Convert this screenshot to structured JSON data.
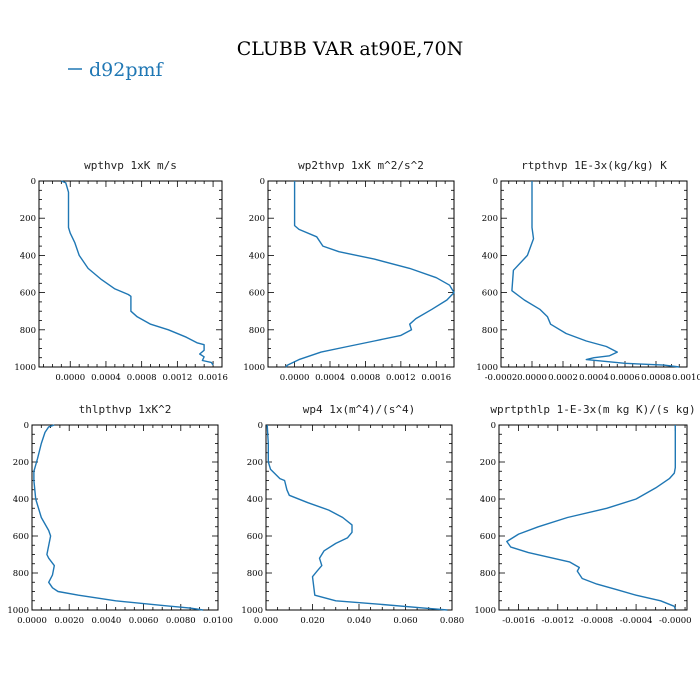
{
  "figure": {
    "title": "CLUBB VAR at90E,70N",
    "legend": {
      "label": "d92pmf",
      "color": "#1f77b4"
    }
  },
  "chart_data": [
    {
      "type": "line",
      "title": "wpthvp  1xK m/s",
      "xlim": [
        -0.00035,
        0.0017
      ],
      "ylim": [
        1000,
        0
      ],
      "xticks": [
        0.0,
        0.0004,
        0.0008,
        0.0012,
        0.0016
      ],
      "xtick_labels": [
        "0.0000",
        "0.0004",
        "0.0008",
        "0.0012",
        "0.0016"
      ],
      "yticks": [
        0,
        200,
        400,
        600,
        800,
        1000
      ],
      "ytick_labels": [
        "0",
        "200",
        "400",
        "600",
        "800",
        "1000"
      ],
      "series": [
        {
          "name": "d92pmf",
          "x": [
            -0.0001,
            -5e-05,
            -2e-05,
            -2e-05,
            0.0,
            5e-05,
            0.0001,
            0.0002,
            0.00035,
            0.0005,
            0.00065,
            0.00068,
            0.00068,
            0.00075,
            0.0009,
            0.0011,
            0.0013,
            0.00142,
            0.0015,
            0.0015,
            0.00145,
            0.0015,
            0.00148,
            0.00158,
            0.0016
          ],
          "y": [
            0,
            10,
            60,
            250,
            280,
            330,
            400,
            470,
            530,
            580,
            610,
            620,
            700,
            730,
            770,
            800,
            840,
            870,
            880,
            910,
            930,
            945,
            965,
            975,
            990
          ]
        }
      ]
    },
    {
      "type": "line",
      "title": "wp2thvp  1xK m^2/s^2",
      "xlim": [
        -0.0003,
        0.0018
      ],
      "ylim": [
        1000,
        0
      ],
      "xticks": [
        0.0,
        0.0004,
        0.0008,
        0.0012,
        0.0016
      ],
      "xtick_labels": [
        "0.0000",
        "0.0004",
        "0.0008",
        "0.0012",
        "0.0016"
      ],
      "yticks": [
        0,
        200,
        400,
        600,
        800,
        1000
      ],
      "ytick_labels": [
        "0",
        "200",
        "400",
        "600",
        "800",
        "1000"
      ],
      "series": [
        {
          "name": "d92pmf",
          "x": [
            0.0,
            0.0,
            5e-05,
            0.00025,
            0.00032,
            0.0005,
            0.0009,
            0.0013,
            0.0016,
            0.00175,
            0.0018,
            0.00172,
            0.00155,
            0.00137,
            0.0013,
            0.00132,
            0.0012,
            0.0009,
            0.0006,
            0.0003,
            5e-05,
            -8e-05,
            -0.0001
          ],
          "y": [
            0,
            240,
            260,
            300,
            350,
            380,
            420,
            470,
            520,
            560,
            600,
            640,
            690,
            740,
            770,
            800,
            830,
            860,
            890,
            920,
            960,
            990,
            1000
          ]
        }
      ]
    },
    {
      "type": "line",
      "title": "rtpthvp  1E-3x(kg/kg) K",
      "xlim": [
        -0.0002,
        0.001
      ],
      "ylim": [
        1000,
        0
      ],
      "xticks": [
        -0.0002,
        0.0,
        0.0002,
        0.0004,
        0.0006,
        0.0008,
        0.001
      ],
      "xtick_labels": [
        "-0.0002",
        "0.0000",
        "0.0002",
        "0.0004",
        "0.0006",
        "0.0008",
        "0.0010"
      ],
      "yticks": [
        0,
        200,
        400,
        600,
        800,
        1000
      ],
      "ytick_labels": [
        "0",
        "200",
        "400",
        "600",
        "800",
        "1000"
      ],
      "series": [
        {
          "name": "d92pmf",
          "x": [
            0.0,
            0.0,
            1e-05,
            -3e-05,
            -0.00012,
            -0.00013,
            -5e-05,
            5e-05,
            0.0001,
            0.00012,
            0.00022,
            0.00035,
            0.00048,
            0.00055,
            0.0005,
            0.0004,
            0.00035,
            0.0006,
            0.00085,
            0.00095
          ],
          "y": [
            0,
            250,
            310,
            400,
            480,
            590,
            640,
            690,
            730,
            770,
            820,
            860,
            890,
            920,
            940,
            950,
            960,
            980,
            990,
            1000
          ]
        }
      ]
    },
    {
      "type": "line",
      "title": "thlpthvp  1xK^2",
      "xlim": [
        0.0,
        0.01
      ],
      "ylim": [
        1000,
        0
      ],
      "xticks": [
        0.0,
        0.002,
        0.004,
        0.006,
        0.008,
        0.01
      ],
      "xtick_labels": [
        "0.0000",
        "0.0020",
        "0.0040",
        "0.0060",
        "0.0080",
        "0.0100"
      ],
      "yticks": [
        0,
        200,
        400,
        600,
        800,
        1000
      ],
      "ytick_labels": [
        "0",
        "200",
        "400",
        "600",
        "800",
        "1000"
      ],
      "series": [
        {
          "name": "d92pmf",
          "x": [
            0.0012,
            0.0009,
            0.0007,
            0.0005,
            0.0003,
            0.0001,
            0.0001,
            0.0002,
            0.0005,
            0.0009,
            0.001,
            0.0008,
            0.0009,
            0.0012,
            0.0011,
            0.0009,
            0.0011,
            0.0014,
            0.0025,
            0.0045,
            0.007,
            0.0085,
            0.0092
          ],
          "y": [
            0,
            10,
            40,
            100,
            180,
            250,
            300,
            400,
            500,
            570,
            600,
            700,
            720,
            760,
            810,
            850,
            880,
            900,
            920,
            950,
            975,
            990,
            1000
          ]
        }
      ]
    },
    {
      "type": "line",
      "title": "wp4  1x(m^4)/(s^4)",
      "xlim": [
        0.0,
        0.08
      ],
      "ylim": [
        1000,
        0
      ],
      "xticks": [
        0.0,
        0.02,
        0.04,
        0.06,
        0.08
      ],
      "xtick_labels": [
        "0.000",
        "0.020",
        "0.040",
        "0.060",
        "0.080"
      ],
      "yticks": [
        0,
        200,
        400,
        600,
        800,
        1000
      ],
      "ytick_labels": [
        "0",
        "200",
        "400",
        "600",
        "800",
        "1000"
      ],
      "series": [
        {
          "name": "d92pmf",
          "x": [
            0.0005,
            0.001,
            0.001,
            0.002,
            0.006,
            0.008,
            0.009,
            0.01,
            0.018,
            0.027,
            0.033,
            0.037,
            0.037,
            0.035,
            0.03,
            0.025,
            0.023,
            0.024,
            0.022,
            0.02,
            0.021,
            0.03,
            0.05,
            0.068,
            0.078
          ],
          "y": [
            0,
            100,
            200,
            240,
            290,
            300,
            350,
            380,
            420,
            460,
            500,
            540,
            580,
            610,
            640,
            680,
            720,
            760,
            790,
            820,
            920,
            950,
            970,
            990,
            1000
          ]
        }
      ]
    },
    {
      "type": "line",
      "title": "wprtpthlp  1-E-3x(m kg K)/(s kg)",
      "xlim": [
        -0.0018,
        0.00012
      ],
      "ylim": [
        1000,
        0
      ],
      "xticks": [
        -0.0016,
        -0.0012,
        -0.0008,
        -0.0004,
        0.0
      ],
      "xtick_labels": [
        "-0.0016",
        "-0.0012",
        "-0.0008",
        "-0.0004",
        "-0.0000"
      ],
      "yticks": [
        0,
        200,
        400,
        600,
        800,
        1000
      ],
      "ytick_labels": [
        "0",
        "200",
        "400",
        "600",
        "800",
        "1000"
      ],
      "series": [
        {
          "name": "d92pmf",
          "x": [
            0.0,
            0.0,
            -1e-05,
            -6e-05,
            -0.0002,
            -0.0004,
            -0.0007,
            -0.0011,
            -0.0014,
            -0.0016,
            -0.00172,
            -0.00168,
            -0.0015,
            -0.00108,
            -0.00098,
            -0.001,
            -0.00095,
            -0.0008,
            -0.0006,
            -0.0004,
            -0.00015,
            -1e-05,
            0.0
          ],
          "y": [
            0,
            230,
            260,
            290,
            340,
            400,
            450,
            500,
            550,
            590,
            630,
            660,
            690,
            740,
            770,
            790,
            830,
            860,
            890,
            920,
            950,
            980,
            995
          ]
        }
      ]
    }
  ]
}
